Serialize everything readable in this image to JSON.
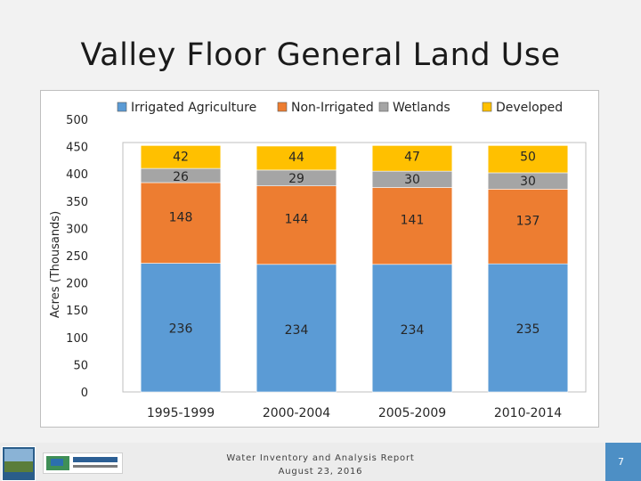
{
  "slide": {
    "title": "Valley Floor General Land Use",
    "footer_line1": "Water Inventory and Analysis Report",
    "footer_line2": "August 23, 2016",
    "page_number": "7"
  },
  "colors": {
    "irrigated_agriculture": "#5b9bd5",
    "non_irrigated": "#ed7d31",
    "wetlands": "#a5a5a5",
    "developed": "#ffc000"
  },
  "chart_data": {
    "type": "bar",
    "stacked": true,
    "title": "",
    "xlabel": "",
    "ylabel": "Acres (Thousands)",
    "ylim": [
      0,
      500
    ],
    "yticks": [
      0,
      50,
      100,
      150,
      200,
      250,
      300,
      350,
      400,
      450,
      500
    ],
    "grid": false,
    "legend_position": "top",
    "categories": [
      "1995-1999",
      "2000-2004",
      "2005-2009",
      "2010-2014"
    ],
    "series": [
      {
        "name": "Irrigated Agriculture",
        "values": [
          236,
          234,
          234,
          235
        ],
        "color": "#5b9bd5"
      },
      {
        "name": "Non-Irrigated",
        "values": [
          148,
          144,
          141,
          137
        ],
        "color": "#ed7d31"
      },
      {
        "name": "Wetlands",
        "values": [
          26,
          29,
          30,
          30
        ],
        "color": "#a5a5a5"
      },
      {
        "name": "Developed",
        "values": [
          42,
          44,
          47,
          50
        ],
        "color": "#ffc000"
      }
    ]
  }
}
